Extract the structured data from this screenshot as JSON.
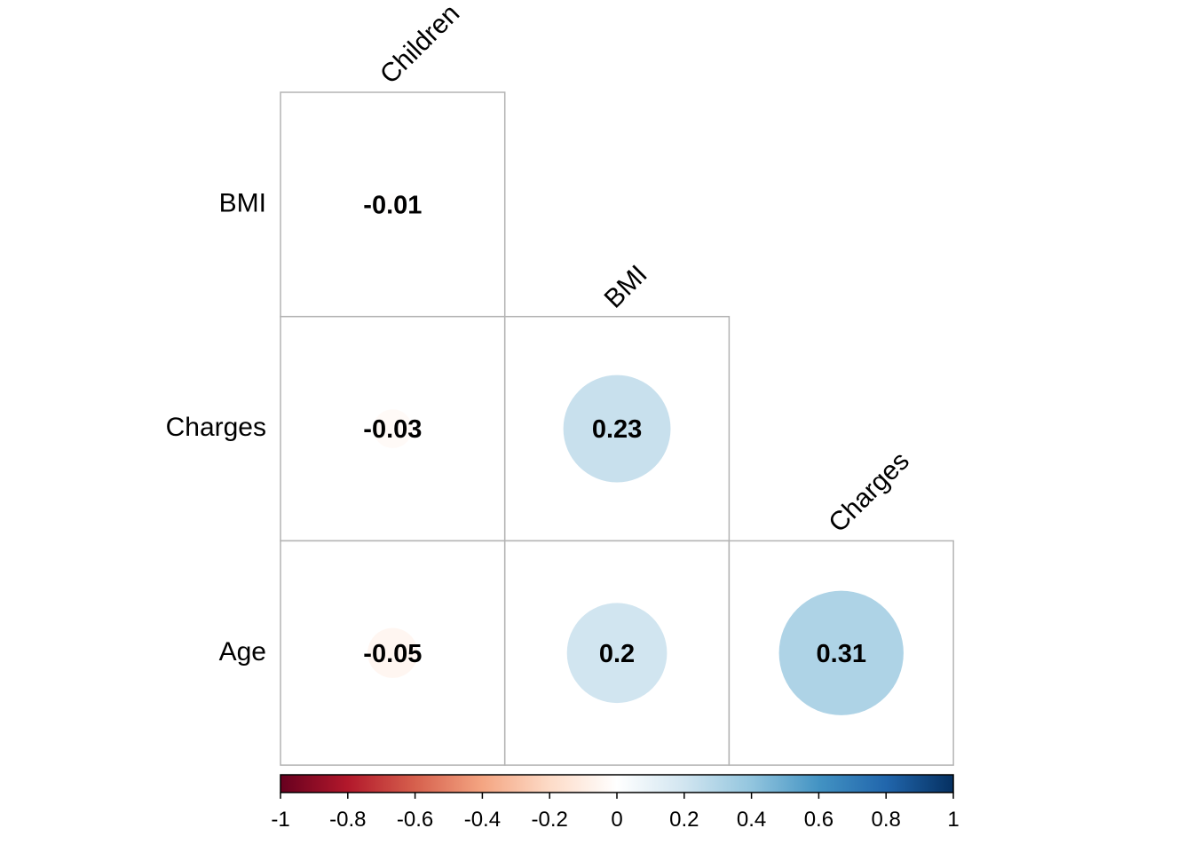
{
  "chart_data": {
    "type": "heatmap",
    "method": "circle",
    "layout": "lower-triangular",
    "row_labels": [
      "BMI",
      "Charges",
      "Age"
    ],
    "column_labels": [
      "Children",
      "BMI",
      "Charges"
    ],
    "cells": [
      {
        "row": 0,
        "col": 0,
        "value": -0.01,
        "label": "-0.01"
      },
      {
        "row": 1,
        "col": 0,
        "value": -0.03,
        "label": "-0.03"
      },
      {
        "row": 1,
        "col": 1,
        "value": 0.23,
        "label": "0.23"
      },
      {
        "row": 2,
        "col": 0,
        "value": -0.05,
        "label": "-0.05"
      },
      {
        "row": 2,
        "col": 1,
        "value": 0.2,
        "label": "0.2"
      },
      {
        "row": 2,
        "col": 2,
        "value": 0.31,
        "label": "0.31"
      }
    ],
    "colorbar": {
      "range": [
        -1,
        1
      ],
      "ticks": [
        "-1",
        "-0.8",
        "-0.6",
        "-0.4",
        "-0.2",
        "0",
        "0.2",
        "0.4",
        "0.6",
        "0.8",
        "1"
      ],
      "colors": [
        "#67001f",
        "#b2182b",
        "#d6604d",
        "#f4a582",
        "#fddbc7",
        "#ffffff",
        "#d1e5f0",
        "#92c5de",
        "#4393c3",
        "#2166ac",
        "#053061"
      ]
    }
  }
}
